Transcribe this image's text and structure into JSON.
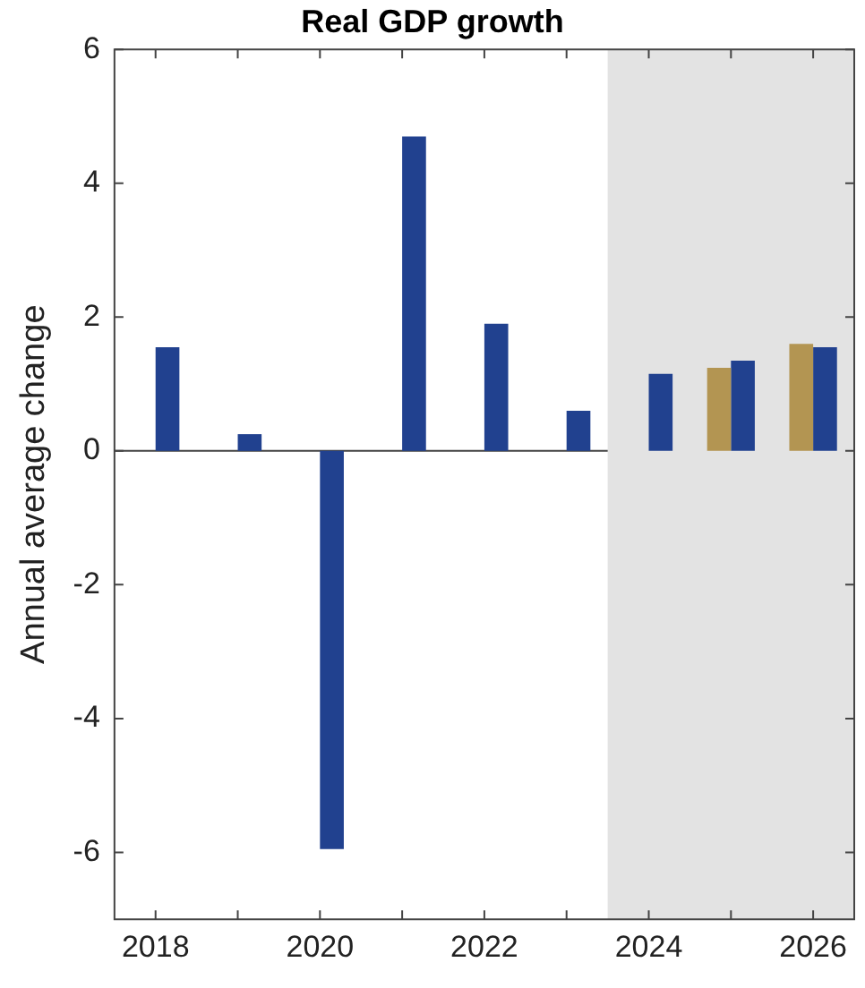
{
  "chart_data": {
    "type": "bar",
    "title": "Real GDP growth",
    "ylabel": "Annual average change",
    "x": [
      2018,
      2019,
      2020,
      2021,
      2022,
      2023,
      2024,
      2025,
      2026
    ],
    "xlim": [
      2017.5,
      2026.5
    ],
    "xticks": [
      2018,
      {
        "value": 2019,
        "label": null
      },
      2020,
      {
        "value": 2021,
        "label": null
      },
      2022,
      {
        "value": 2023,
        "label": null
      },
      2024,
      {
        "value": 2025,
        "label": null
      },
      2026
    ],
    "ylim": [
      -7,
      6
    ],
    "yticks": [
      -6,
      -4,
      -2,
      0,
      2,
      4,
      6
    ],
    "series": [
      {
        "color": "#b39552",
        "values": [
          null,
          null,
          null,
          null,
          null,
          null,
          null,
          1.24,
          1.6
        ]
      },
      {
        "color": "#21418f",
        "values": [
          1.55,
          0.25,
          -5.95,
          4.7,
          1.9,
          0.6,
          1.15,
          1.35,
          1.55
        ]
      }
    ],
    "ref_lines": [
      {
        "axis": "y",
        "value": 0,
        "color": "#444444"
      }
    ],
    "bands": [
      {
        "axis": "x",
        "from": 2023.5,
        "to": 2026.5,
        "color": "#e3e3e3"
      }
    ],
    "grid": false,
    "legend": false
  }
}
